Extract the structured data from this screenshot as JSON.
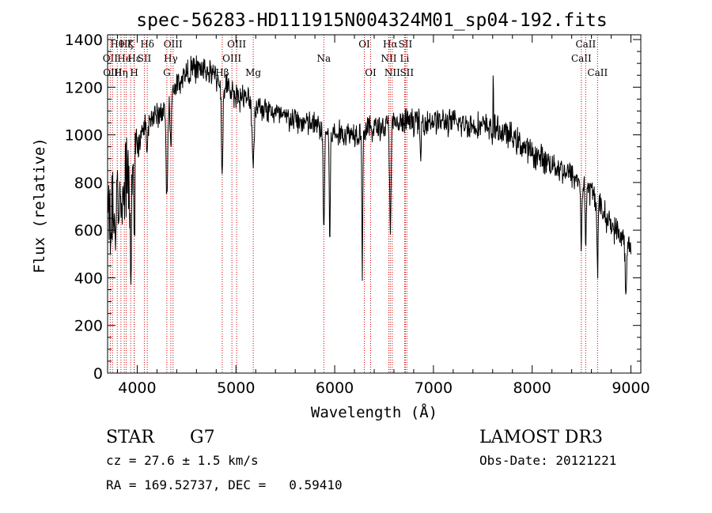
{
  "chart_data": {
    "type": "line",
    "title": "spec-56283-HD111915N004324M01_sp04-192.fits",
    "xlabel": "Wavelength (Å)",
    "ylabel": "Flux (relative)",
    "xlim": [
      3700,
      9100
    ],
    "ylim": [
      0,
      1420
    ],
    "x_ticks": [
      4000,
      5000,
      6000,
      7000,
      8000,
      9000
    ],
    "y_ticks": [
      0,
      200,
      400,
      600,
      800,
      1000,
      1200,
      1400
    ],
    "grid": false,
    "continuum": [
      [
        3700,
        620
      ],
      [
        3800,
        700
      ],
      [
        3900,
        800
      ],
      [
        4000,
        950
      ],
      [
        4100,
        1070
      ],
      [
        4200,
        1080
      ],
      [
        4300,
        1120
      ],
      [
        4400,
        1210
      ],
      [
        4500,
        1260
      ],
      [
        4600,
        1280
      ],
      [
        4700,
        1270
      ],
      [
        4800,
        1240
      ],
      [
        4900,
        1200
      ],
      [
        5000,
        1170
      ],
      [
        5200,
        1130
      ],
      [
        5500,
        1070
      ],
      [
        5800,
        1040
      ],
      [
        6000,
        1000
      ],
      [
        6200,
        1010
      ],
      [
        6400,
        1030
      ],
      [
        6600,
        1040
      ],
      [
        6800,
        1060
      ],
      [
        7000,
        1060
      ],
      [
        7200,
        1050
      ],
      [
        7400,
        1040
      ],
      [
        7600,
        1030
      ],
      [
        7800,
        990
      ],
      [
        8000,
        920
      ],
      [
        8200,
        880
      ],
      [
        8400,
        830
      ],
      [
        8600,
        760
      ],
      [
        8800,
        620
      ],
      [
        9000,
        530
      ]
    ],
    "absorption_features": [
      {
        "x": 3934,
        "depth": 420,
        "width": 8
      },
      {
        "x": 3969,
        "depth": 400,
        "width": 8
      },
      {
        "x": 4101,
        "depth": 150,
        "width": 10
      },
      {
        "x": 4300,
        "depth": 380,
        "width": 12
      },
      {
        "x": 4340,
        "depth": 180,
        "width": 10
      },
      {
        "x": 4861,
        "depth": 420,
        "width": 10
      },
      {
        "x": 5175,
        "depth": 250,
        "width": 14
      },
      {
        "x": 5890,
        "depth": 430,
        "width": 10
      },
      {
        "x": 5950,
        "depth": 440,
        "width": 8
      },
      {
        "x": 6280,
        "depth": 650,
        "width": 6
      },
      {
        "x": 6563,
        "depth": 420,
        "width": 10
      },
      {
        "x": 6870,
        "depth": 150,
        "width": 10
      },
      {
        "x": 7600,
        "depth": 80,
        "width": 10
      },
      {
        "x": 8498,
        "depth": 260,
        "width": 8
      },
      {
        "x": 8542,
        "depth": 240,
        "width": 8
      },
      {
        "x": 8662,
        "depth": 280,
        "width": 8
      },
      {
        "x": 8950,
        "depth": 250,
        "width": 10
      }
    ],
    "emission_spikes": [
      {
        "x": 7605,
        "height": 360
      }
    ],
    "noise_amplitude": 70,
    "blue_end_noise_amplitude": 220,
    "line_markers": [
      {
        "x": 3727,
        "label": "OII",
        "row": 2
      },
      {
        "x": 3750,
        "label": "OIII",
        "row": 3
      },
      {
        "x": 3798,
        "label": "Hθ",
        "row": 1
      },
      {
        "x": 3835,
        "label": "Hη",
        "row": 3
      },
      {
        "x": 3869,
        "label": "He",
        "row": 2
      },
      {
        "x": 3889,
        "label": "Hζ",
        "row": 1
      },
      {
        "x": 3934,
        "label": "K",
        "row": 1
      },
      {
        "x": 3969,
        "label": "H",
        "row": 3
      },
      {
        "x": 3970,
        "label": "Hε",
        "row": 2
      },
      {
        "x": 4072,
        "label": "SII",
        "row": 2
      },
      {
        "x": 4102,
        "label": "Hδ",
        "row": 1
      },
      {
        "x": 4300,
        "label": "G",
        "row": 3
      },
      {
        "x": 4340,
        "label": "Hγ",
        "row": 2
      },
      {
        "x": 4363,
        "label": "OIII",
        "row": 1
      },
      {
        "x": 4861,
        "label": "Hβ",
        "row": 3
      },
      {
        "x": 4959,
        "label": "OIII",
        "row": 2
      },
      {
        "x": 5007,
        "label": "OIII",
        "row": 1
      },
      {
        "x": 5175,
        "label": "Mg",
        "row": 3
      },
      {
        "x": 5890,
        "label": "Na",
        "row": 2
      },
      {
        "x": 6300,
        "label": "OI",
        "row": 1
      },
      {
        "x": 6364,
        "label": "OI",
        "row": 3
      },
      {
        "x": 6548,
        "label": "NII",
        "row": 2
      },
      {
        "x": 6563,
        "label": "Hα",
        "row": 1
      },
      {
        "x": 6583,
        "label": "NII",
        "row": 3
      },
      {
        "x": 6708,
        "label": "Li",
        "row": 2
      },
      {
        "x": 6716,
        "label": "SII",
        "row": 1
      },
      {
        "x": 6731,
        "label": "SII",
        "row": 3
      },
      {
        "x": 8498,
        "label": "CaII",
        "row": 2
      },
      {
        "x": 8542,
        "label": "CaII",
        "row": 1
      },
      {
        "x": 8662,
        "label": "CaII",
        "row": 3
      }
    ]
  },
  "info": {
    "class_label": "STAR",
    "subclass_label": "G7",
    "survey_label": "LAMOST DR3",
    "redshift_text": "cz = 27.6 ± 1.5 km/s",
    "obs_date_text": "Obs-Date: 20121221",
    "coords_text": "RA = 169.52737, DEC =   0.59410"
  },
  "colors": {
    "spectrum": "#000000",
    "marker": "#cc0000",
    "axes": "#000000",
    "background": "#ffffff"
  }
}
